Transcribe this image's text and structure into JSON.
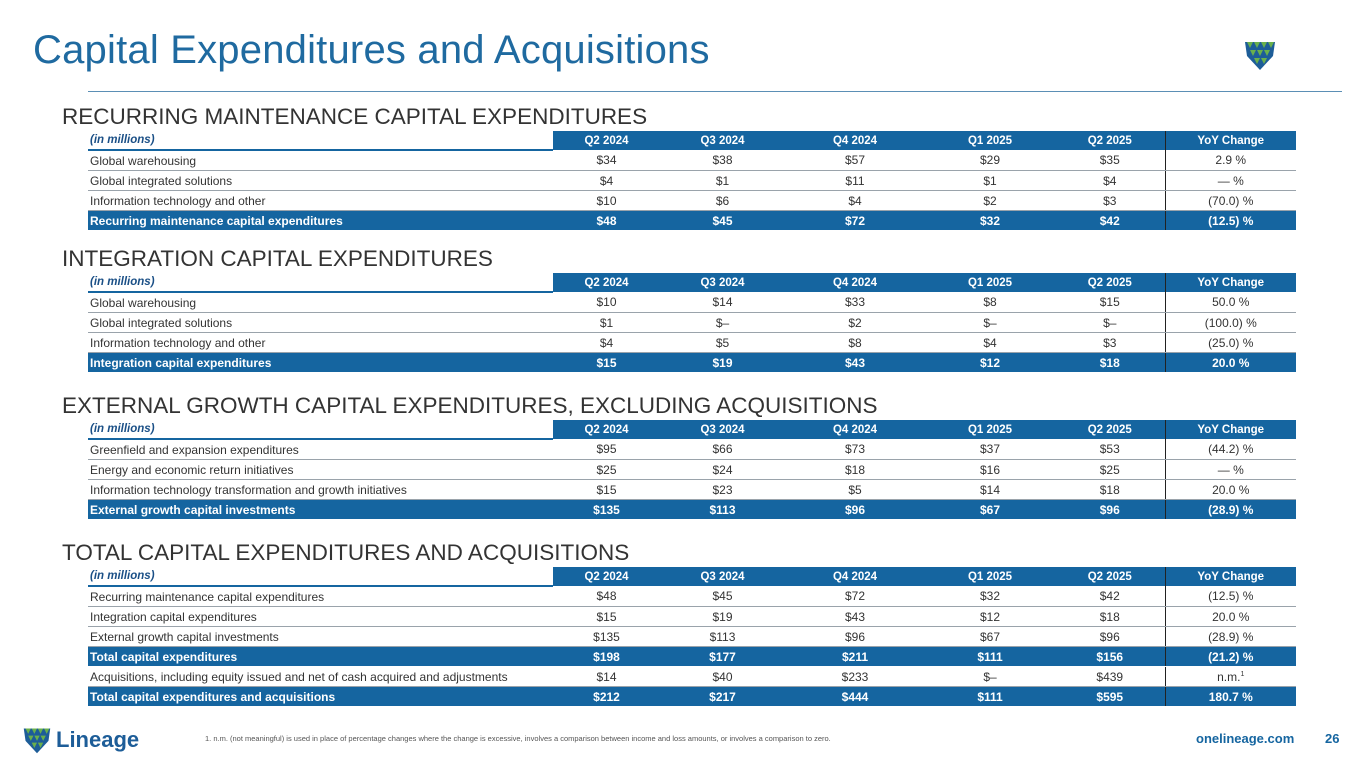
{
  "title": "Capital Expenditures and Acquisitions",
  "header_label": "(in millions)",
  "columns": [
    "Q2 2024",
    "Q3 2024",
    "Q4 2024",
    "Q1 2025",
    "Q2 2025",
    "YoY  Change"
  ],
  "sections": [
    {
      "title": "RECURRING MAINTENANCE CAPITAL EXPENDITURES",
      "rows": [
        {
          "label": "Global warehousing",
          "values": [
            "$34",
            "$38",
            "$57",
            "$29",
            "$35",
            "2.9 %"
          ]
        },
        {
          "label": "Global integrated solutions",
          "values": [
            "$4",
            "$1",
            "$11",
            "$1",
            "$4",
            "— %"
          ]
        },
        {
          "label": "Information technology and other",
          "values": [
            "$10",
            "$6",
            "$4",
            "$2",
            "$3",
            "(70.0) %"
          ]
        },
        {
          "label": "Recurring maintenance capital expenditures",
          "values": [
            "$48",
            "$45",
            "$72",
            "$32",
            "$42",
            "(12.5) %"
          ],
          "total": true
        }
      ]
    },
    {
      "title": "INTEGRATION CAPITAL EXPENDITURES",
      "rows": [
        {
          "label": "Global warehousing",
          "values": [
            "$10",
            "$14",
            "$33",
            "$8",
            "$15",
            "50.0 %"
          ]
        },
        {
          "label": "Global integrated solutions",
          "values": [
            "$1",
            "$–",
            "$2",
            "$–",
            "$–",
            "(100.0) %"
          ]
        },
        {
          "label": "Information technology and other",
          "values": [
            "$4",
            "$5",
            "$8",
            "$4",
            "$3",
            "(25.0) %"
          ]
        },
        {
          "label": "Integration capital expenditures",
          "values": [
            "$15",
            "$19",
            "$43",
            "$12",
            "$18",
            "20.0 %"
          ],
          "total": true
        }
      ]
    },
    {
      "title": "EXTERNAL GROWTH CAPITAL EXPENDITURES, EXCLUDING ACQUISITIONS",
      "rows": [
        {
          "label": "Greenfield and expansion expenditures",
          "values": [
            "$95",
            "$66",
            "$73",
            "$37",
            "$53",
            "(44.2) %"
          ]
        },
        {
          "label": "Energy and economic return initiatives",
          "values": [
            "$25",
            "$24",
            "$18",
            "$16",
            "$25",
            "— %"
          ]
        },
        {
          "label": "Information technology transformation and growth initiatives",
          "values": [
            "$15",
            "$23",
            "$5",
            "$14",
            "$18",
            "20.0 %"
          ]
        },
        {
          "label": "External growth capital investments",
          "values": [
            "$135",
            "$113",
            "$96",
            "$67",
            "$96",
            "(28.9) %"
          ],
          "total": true
        }
      ]
    },
    {
      "title": "TOTAL CAPITAL EXPENDITURES AND ACQUISITIONS",
      "rows": [
        {
          "label": "Recurring maintenance capital expenditures",
          "values": [
            "$48",
            "$45",
            "$72",
            "$32",
            "$42",
            "(12.5) %"
          ]
        },
        {
          "label": "Integration capital expenditures",
          "values": [
            "$15",
            "$19",
            "$43",
            "$12",
            "$18",
            "20.0 %"
          ]
        },
        {
          "label": "External growth capital investments",
          "values": [
            "$135",
            "$113",
            "$96",
            "$67",
            "$96",
            "(28.9) %"
          ]
        },
        {
          "label": "Total capital expenditures",
          "values": [
            "$198",
            "$177",
            "$211",
            "$111",
            "$156",
            "(21.2) %"
          ],
          "total": true
        },
        {
          "label": "Acquisitions, including equity issued and net of cash acquired and adjustments",
          "values": [
            "$14",
            "$40",
            "$233",
            "$–",
            "$439",
            "n.m."
          ],
          "sup": "1"
        },
        {
          "label": "Total capital expenditures and acquisitions",
          "values": [
            "$212",
            "$217",
            "$444",
            "$111",
            "$595",
            "180.7 %"
          ],
          "total": true
        }
      ]
    }
  ],
  "footer": {
    "logo_text": "Lineage",
    "note": "1.      n.m. (not meaningful) is used in place of percentage changes where the change is excessive, involves a comparison between income and loss amounts, or involves a comparison to zero.",
    "website": "onelineage.com",
    "page_number": "26"
  },
  "colors": {
    "brand_blue": "#1565a0",
    "brand_green": "#6ab04c"
  }
}
